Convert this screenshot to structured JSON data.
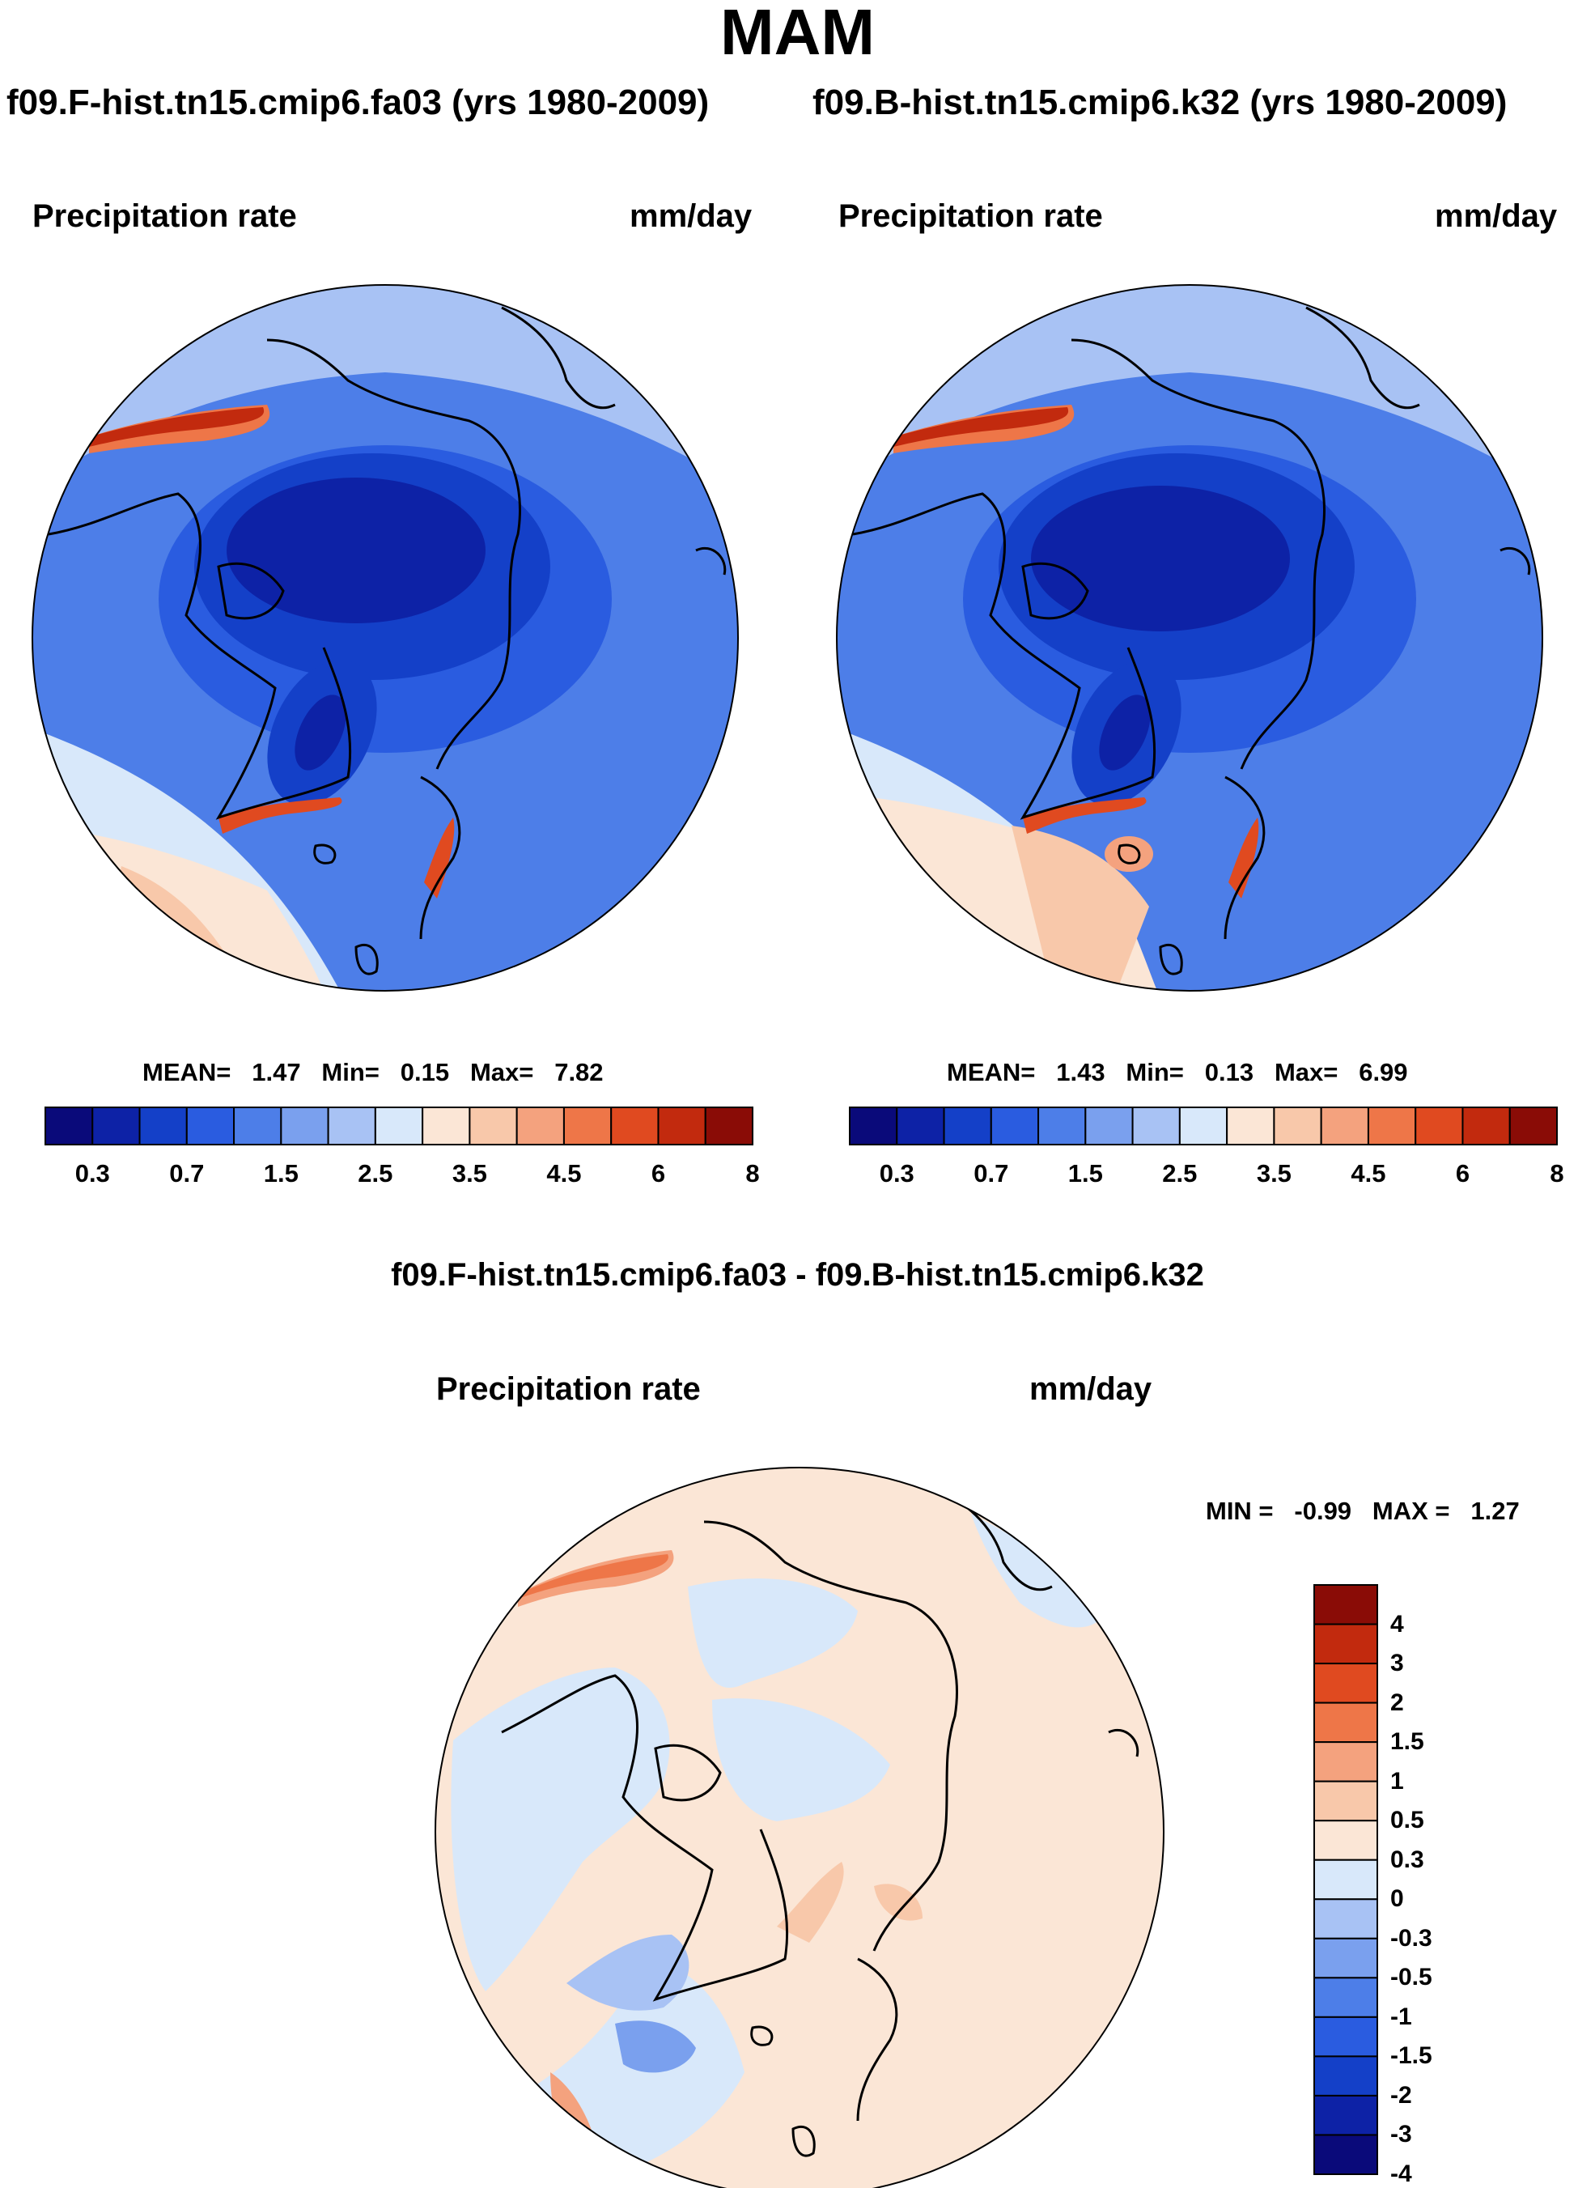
{
  "page_title": "MAM",
  "left_panel": {
    "case_title": "f09.F-hist.tn15.cmip6.fa03 (yrs 1980-2009)",
    "variable": "Precipitation rate",
    "units": "mm/day",
    "mean_label": "MEAN=",
    "mean_value": "1.47",
    "min_label": "Min=",
    "min_value": "0.15",
    "max_label": "Max=",
    "max_value": "7.82"
  },
  "right_panel": {
    "case_title": "f09.B-hist.tn15.cmip6.k32 (yrs 1980-2009)",
    "variable": "Precipitation rate",
    "units": "mm/day",
    "mean_label": "MEAN=",
    "mean_value": "1.43",
    "min_label": "Min=",
    "min_value": "0.13",
    "max_label": "Max=",
    "max_value": "6.99"
  },
  "abs_colorbar": {
    "colors": [
      "#0a0a7a",
      "#0d22a6",
      "#1440c8",
      "#2a5ce0",
      "#4d7ee8",
      "#7aa0ee",
      "#a8c2f4",
      "#d8e8fa",
      "#fbe6d6",
      "#f8c8aa",
      "#f4a27e",
      "#ee7648",
      "#e04a20",
      "#c22a0e",
      "#8a0c06"
    ],
    "tick_labels": [
      "0.3",
      "0.7",
      "1.5",
      "2.5",
      "3.5",
      "4.5",
      "6",
      "8"
    ]
  },
  "diff_panel": {
    "title": "f09.F-hist.tn15.cmip6.fa03 - f09.B-hist.tn15.cmip6.k32",
    "variable": "Precipitation rate",
    "units": "mm/day",
    "min_label": "MIN =",
    "min_value": "-0.99",
    "max_label": "MAX =",
    "max_value": "1.27"
  },
  "diff_colorbar": {
    "colors": [
      "#8a0c06",
      "#c22a0e",
      "#e04a20",
      "#ee7648",
      "#f4a27e",
      "#f8c8aa",
      "#fbe6d6",
      "#d8e8fa",
      "#a8c2f4",
      "#7aa0ee",
      "#4d7ee8",
      "#2a5ce0",
      "#1440c8",
      "#0d22a6",
      "#0a0a7a"
    ],
    "tick_labels": [
      "4",
      "3",
      "2",
      "1.5",
      "1",
      "0.5",
      "0.3",
      "0",
      "-0.3",
      "-0.5",
      "-1",
      "-1.5",
      "-2",
      "-3",
      "-4"
    ]
  },
  "colors": {
    "ocean_mid": "#2a5ce0",
    "deep": "#0d22a6",
    "diff_bg": "#fbe6d6"
  }
}
